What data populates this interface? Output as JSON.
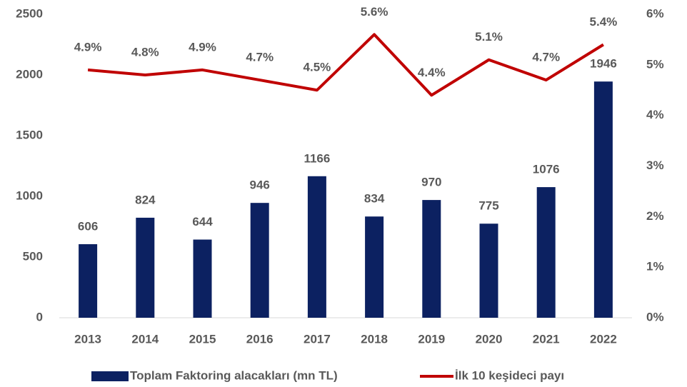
{
  "chart_data": {
    "type": "bar",
    "categories": [
      "2013",
      "2014",
      "2015",
      "2016",
      "2017",
      "2018",
      "2019",
      "2020",
      "2021",
      "2022"
    ],
    "series": [
      {
        "name": "Toplam Faktoring alacakları (mn TL)",
        "type": "bar",
        "color": "#0c2161",
        "values": [
          606,
          824,
          644,
          946,
          1166,
          834,
          970,
          775,
          1076,
          1946
        ]
      },
      {
        "name": "İlk 10 keşideci payı",
        "type": "line",
        "axis": "y2",
        "color": "#c00000",
        "values": [
          4.9,
          4.8,
          4.9,
          4.7,
          4.5,
          5.6,
          4.4,
          5.1,
          4.7,
          5.4
        ],
        "value_labels": [
          "4.9%",
          "4.8%",
          "4.9%",
          "4.7%",
          "4.5%",
          "5.6%",
          "4.4%",
          "5.1%",
          "4.7%",
          "5.4%"
        ]
      }
    ],
    "ylim": [
      0,
      2500
    ],
    "yticks": [
      0,
      500,
      1000,
      1500,
      2000,
      2500
    ],
    "y2lim": [
      0,
      6
    ],
    "y2ticks": [
      {
        "value": 0,
        "label": "0%"
      },
      {
        "value": 1,
        "label": "1%"
      },
      {
        "value": 2,
        "label": "2%"
      },
      {
        "value": 3,
        "label": "3%"
      },
      {
        "value": 4,
        "label": "4%"
      },
      {
        "value": 5,
        "label": "5%"
      },
      {
        "value": 6,
        "label": "6%"
      }
    ],
    "grid": false,
    "legend": "bottom"
  }
}
